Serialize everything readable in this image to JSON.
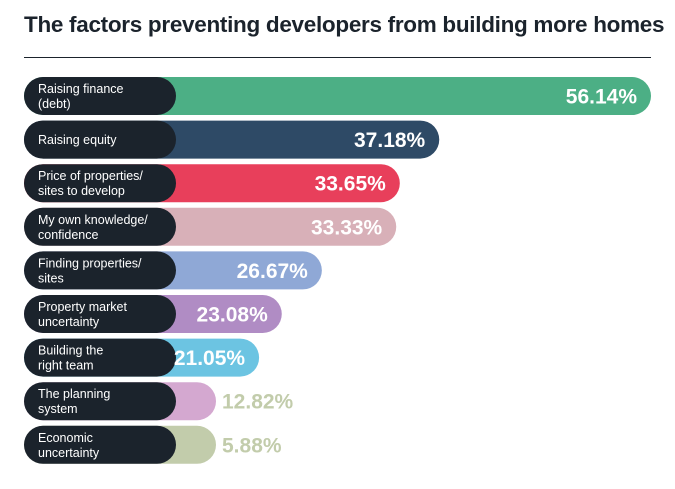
{
  "chart_data": {
    "type": "bar",
    "orientation": "horizontal",
    "title": "The factors preventing developers from building more homes",
    "categories": [
      [
        "Raising finance",
        "(debt)"
      ],
      [
        "Raising equity"
      ],
      [
        "Price of properties/",
        "sites to develop"
      ],
      [
        "My own knowledge/",
        "confidence"
      ],
      [
        "Finding properties/",
        "sites"
      ],
      [
        "Property market",
        "uncertainty"
      ],
      [
        "Building the",
        "right team"
      ],
      [
        "The planning",
        "system"
      ],
      [
        "Economic",
        "uncertainty"
      ]
    ],
    "values": [
      56.14,
      37.18,
      33.65,
      33.33,
      26.67,
      23.08,
      21.05,
      12.82,
      5.88
    ],
    "value_labels": [
      "56.14%",
      "37.18%",
      "33.65%",
      "33.33%",
      "26.67%",
      "23.08%",
      "21.05%",
      "12.82%",
      "5.88%"
    ],
    "colors": [
      "#4caf85",
      "#2e4a66",
      "#e83f5b",
      "#d8b0b8",
      "#8fa8d6",
      "#b08cc4",
      "#6cc4e2",
      "#d4a8d0",
      "#c2ccab"
    ],
    "label_pill_color": "#1b232c",
    "value_label_outside_color": "#c2ccab",
    "xlim": [
      0,
      56.14
    ],
    "grid": false,
    "legend": "none"
  }
}
